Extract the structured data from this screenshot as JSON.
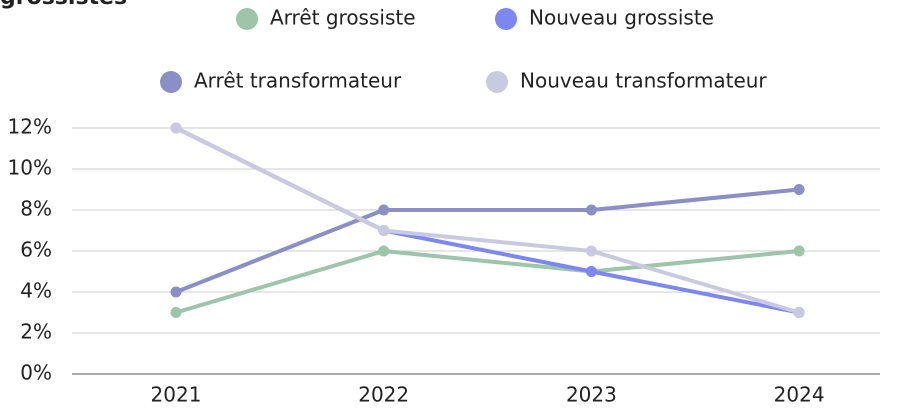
{
  "chart_data": {
    "type": "line",
    "title": "grossistes",
    "categories": [
      "2021",
      "2022",
      "2023",
      "2024"
    ],
    "series": [
      {
        "name": "Arrêt grossiste",
        "color": "#9dc5aa",
        "values": [
          3,
          6,
          5,
          6
        ]
      },
      {
        "name": "Nouveau grossiste",
        "color": "#7d87f2",
        "values": [
          12,
          7,
          5,
          3
        ]
      },
      {
        "name": "Arrêt transformateur",
        "color": "#8a8fc6",
        "values": [
          4,
          8,
          8,
          9
        ]
      },
      {
        "name": "Nouveau transformateur",
        "color": "#c9cae2",
        "values": [
          12,
          7,
          6,
          3
        ]
      }
    ],
    "ylim": [
      0,
      12
    ],
    "yticks": [
      {
        "value": 0,
        "label": "0%"
      },
      {
        "value": 2,
        "label": "2%"
      },
      {
        "value": 4,
        "label": "4%"
      },
      {
        "value": 6,
        "label": "6%"
      },
      {
        "value": 8,
        "label": "8%"
      },
      {
        "value": 10,
        "label": "10%"
      },
      {
        "value": 12,
        "label": "12%"
      }
    ],
    "grid": true
  }
}
